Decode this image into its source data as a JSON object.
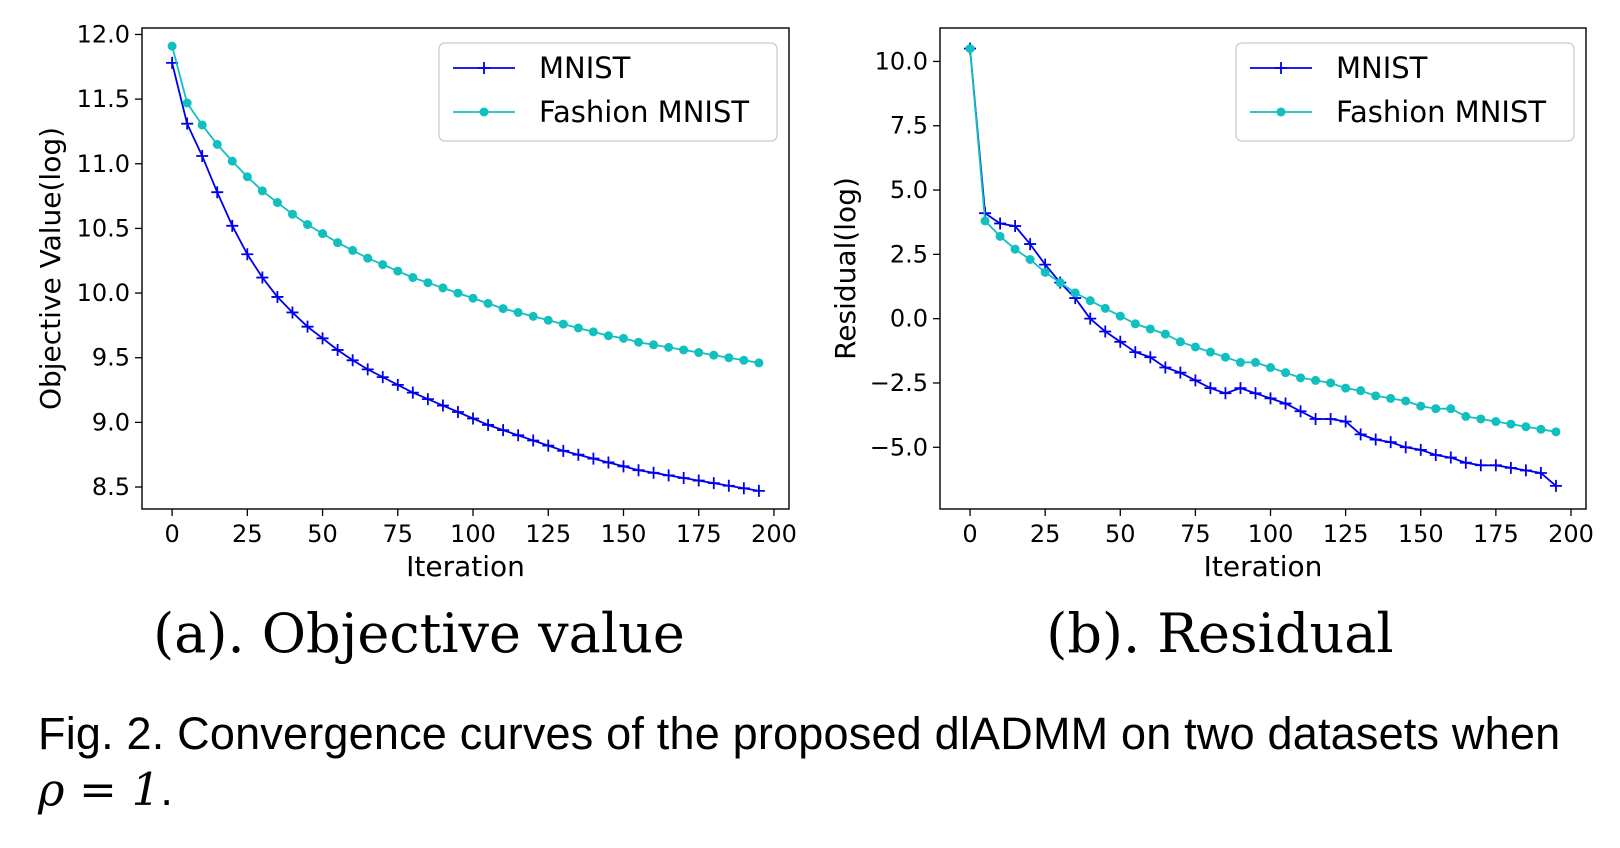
{
  "figure": {
    "subcaption_a": "(a). Objective value",
    "subcaption_b": "(b). Residual",
    "caption_prefix": "Fig. 2. Convergence curves of the proposed dlADMM on two datasets when",
    "caption_math": "ρ = 1",
    "caption_suffix": "."
  },
  "chart_data": [
    {
      "type": "line",
      "title": "",
      "xlabel": "Iteration",
      "ylabel": "Objective Value(log)",
      "xlim": [
        -10,
        205
      ],
      "ylim": [
        8.33,
        12.05
      ],
      "xticks": [
        0,
        25,
        50,
        75,
        100,
        125,
        150,
        175,
        200
      ],
      "xtick_labels": [
        "0",
        "25",
        "50",
        "75",
        "100",
        "125",
        "150",
        "175",
        "200"
      ],
      "yticks": [
        8.5,
        9.0,
        9.5,
        10.0,
        10.5,
        11.0,
        11.5,
        12.0
      ],
      "ytick_labels": [
        "8.5",
        "9.0",
        "9.5",
        "10.0",
        "10.5",
        "11.0",
        "11.5",
        "12.0"
      ],
      "legend_position": "top-right",
      "grid": false,
      "x": [
        0,
        5,
        10,
        15,
        20,
        25,
        30,
        35,
        40,
        45,
        50,
        55,
        60,
        65,
        70,
        75,
        80,
        85,
        90,
        95,
        100,
        105,
        110,
        115,
        120,
        125,
        130,
        135,
        140,
        145,
        150,
        155,
        160,
        165,
        170,
        175,
        180,
        185,
        190,
        195
      ],
      "series": [
        {
          "name": "MNIST",
          "color": "#0000ee",
          "marker": "plus",
          "values": [
            11.78,
            11.31,
            11.06,
            10.78,
            10.52,
            10.3,
            10.12,
            9.97,
            9.85,
            9.74,
            9.65,
            9.56,
            9.48,
            9.41,
            9.35,
            9.29,
            9.23,
            9.18,
            9.13,
            9.08,
            9.03,
            8.98,
            8.94,
            8.9,
            8.86,
            8.82,
            8.78,
            8.75,
            8.72,
            8.69,
            8.66,
            8.63,
            8.61,
            8.59,
            8.57,
            8.55,
            8.53,
            8.51,
            8.49,
            8.47
          ]
        },
        {
          "name": "Fashion MNIST",
          "color": "#12bfbf",
          "marker": "dot",
          "values": [
            11.91,
            11.47,
            11.3,
            11.15,
            11.02,
            10.9,
            10.79,
            10.7,
            10.61,
            10.53,
            10.46,
            10.39,
            10.33,
            10.27,
            10.22,
            10.17,
            10.12,
            10.08,
            10.04,
            10.0,
            9.96,
            9.92,
            9.88,
            9.85,
            9.82,
            9.79,
            9.76,
            9.73,
            9.7,
            9.67,
            9.65,
            9.62,
            9.6,
            9.58,
            9.56,
            9.54,
            9.52,
            9.5,
            9.48,
            9.46
          ]
        }
      ]
    },
    {
      "type": "line",
      "title": "",
      "xlabel": "Iteration",
      "ylabel": "Residual(log)",
      "xlim": [
        -10,
        205
      ],
      "ylim": [
        -7.4,
        11.3
      ],
      "xticks": [
        0,
        25,
        50,
        75,
        100,
        125,
        150,
        175,
        200
      ],
      "xtick_labels": [
        "0",
        "25",
        "50",
        "75",
        "100",
        "125",
        "150",
        "175",
        "200"
      ],
      "yticks": [
        -5.0,
        -2.5,
        0.0,
        2.5,
        5.0,
        7.5,
        10.0
      ],
      "ytick_labels": [
        "−5.0",
        "−2.5",
        "0.0",
        "2.5",
        "5.0",
        "7.5",
        "10.0"
      ],
      "legend_position": "top-right",
      "grid": false,
      "x": [
        0,
        5,
        10,
        15,
        20,
        25,
        30,
        35,
        40,
        45,
        50,
        55,
        60,
        65,
        70,
        75,
        80,
        85,
        90,
        95,
        100,
        105,
        110,
        115,
        120,
        125,
        130,
        135,
        140,
        145,
        150,
        155,
        160,
        165,
        170,
        175,
        180,
        185,
        190,
        195
      ],
      "series": [
        {
          "name": "MNIST",
          "color": "#0000ee",
          "marker": "plus",
          "values": [
            10.5,
            4.1,
            3.7,
            3.6,
            2.9,
            2.1,
            1.4,
            0.8,
            0.0,
            -0.5,
            -0.9,
            -1.3,
            -1.5,
            -1.9,
            -2.1,
            -2.4,
            -2.7,
            -2.9,
            -2.7,
            -2.9,
            -3.1,
            -3.3,
            -3.6,
            -3.9,
            -3.9,
            -4.0,
            -4.5,
            -4.7,
            -4.8,
            -5.0,
            -5.1,
            -5.3,
            -5.4,
            -5.6,
            -5.7,
            -5.7,
            -5.8,
            -5.9,
            -6.0,
            -6.5
          ]
        },
        {
          "name": "Fashion MNIST",
          "color": "#12bfbf",
          "marker": "dot",
          "values": [
            10.5,
            3.8,
            3.2,
            2.7,
            2.3,
            1.8,
            1.4,
            1.0,
            0.7,
            0.4,
            0.1,
            -0.2,
            -0.4,
            -0.6,
            -0.9,
            -1.1,
            -1.3,
            -1.5,
            -1.7,
            -1.7,
            -1.9,
            -2.1,
            -2.3,
            -2.4,
            -2.5,
            -2.7,
            -2.8,
            -3.0,
            -3.1,
            -3.2,
            -3.4,
            -3.5,
            -3.5,
            -3.8,
            -3.9,
            -4.0,
            -4.1,
            -4.2,
            -4.3,
            -4.4
          ]
        }
      ]
    }
  ]
}
